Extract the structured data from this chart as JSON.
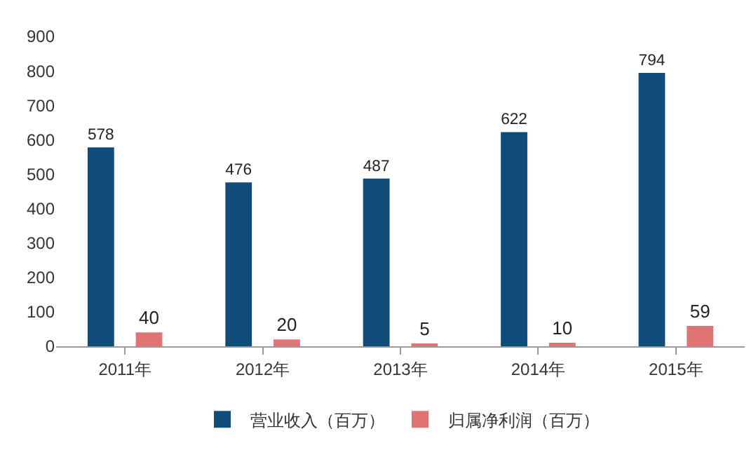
{
  "chart_data": {
    "type": "bar",
    "categories": [
      "2011年",
      "2012年",
      "2013年",
      "2014年",
      "2015年"
    ],
    "series": [
      {
        "name": "营业收入（百万）",
        "color": "#0f4c7a",
        "values": [
          578,
          476,
          487,
          622,
          794
        ]
      },
      {
        "name": "归属净利润（百万）",
        "color": "#e07474",
        "values": [
          40,
          20,
          5,
          10,
          59
        ]
      }
    ],
    "ylim": [
      0,
      900
    ],
    "yticks": [
      0,
      100,
      200,
      300,
      400,
      500,
      600,
      700,
      800,
      900
    ],
    "grid": false,
    "legend": "bottom",
    "data_labels": true
  }
}
